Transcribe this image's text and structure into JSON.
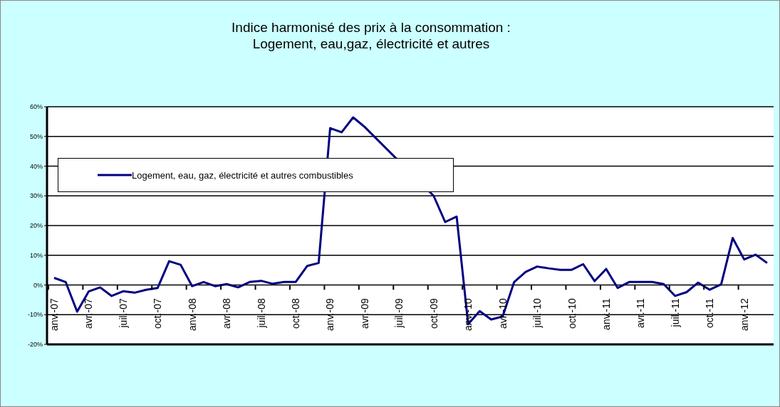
{
  "chart_data": {
    "type": "line",
    "title": "Indice harmonisé des prix à la consommation :\nLogement, eau,gaz, électricité et autres",
    "categories": [
      "anv.-07",
      null,
      null,
      "avr.-07",
      null,
      null,
      "juil.-07",
      null,
      null,
      "oct.-07",
      null,
      null,
      "anv.-08",
      null,
      null,
      "avr.-08",
      null,
      null,
      "juil.-08",
      null,
      null,
      "oct.-08",
      null,
      null,
      "anv.-09",
      null,
      null,
      "avr.-09",
      null,
      null,
      "juil.-09",
      null,
      null,
      "oct.-09",
      null,
      null,
      "anv.-10",
      null,
      null,
      "avr.-10",
      null,
      null,
      "juil.-10",
      null,
      null,
      "oct.-10",
      null,
      null,
      "anv.-11",
      null,
      null,
      "avr.-11",
      null,
      null,
      "juil.-11",
      null,
      null,
      "oct.-11",
      null,
      null,
      "anv.-12",
      null,
      null
    ],
    "series": [
      {
        "name": "Logement, eau, gaz, électricité et autres combustibles",
        "color": "#000080",
        "values": [
          2.4,
          1.0,
          -9.0,
          -2.2,
          -0.8,
          -3.7,
          -2.1,
          -2.6,
          -1.6,
          -1.0,
          8.0,
          6.8,
          -0.4,
          1.0,
          -0.4,
          0.3,
          -0.8,
          1.0,
          1.4,
          0.4,
          1.0,
          1.0,
          6.4,
          7.4,
          52.8,
          51.4,
          56.4,
          53.2,
          null,
          null,
          null,
          null,
          null,
          30.0,
          21.2,
          23.0,
          -13.2,
          -8.8,
          -11.6,
          -10.6,
          1.0,
          4.4,
          6.2,
          5.6,
          5.1,
          5.1,
          7.0,
          1.3,
          5.4,
          -1.0,
          1.0,
          1.0,
          1.0,
          0.3,
          -3.7,
          -2.4,
          0.8,
          -1.6,
          0.2,
          15.8,
          8.6,
          10.2,
          7.4
        ]
      }
    ],
    "ylim": [
      -20,
      60
    ],
    "yticks": [
      {
        "value": -20,
        "label": "-20%"
      },
      {
        "value": -10,
        "label": "-10%"
      },
      {
        "value": 0,
        "label": "0%"
      },
      {
        "value": 10,
        "label": "10%"
      },
      {
        "value": 20,
        "label": "20%"
      },
      {
        "value": 30,
        "label": "30%"
      },
      {
        "value": 40,
        "label": "40%"
      },
      {
        "value": 50,
        "label": "50%"
      },
      {
        "value": 60,
        "label": "60%"
      }
    ],
    "grid": "y",
    "legend": "top left",
    "marker": "none",
    "line_style": "solid"
  }
}
